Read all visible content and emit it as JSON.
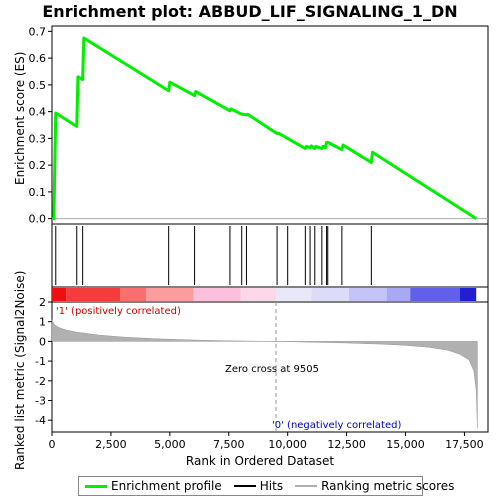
{
  "title": "Enrichment plot: ABBUD_LIF_SIGNALING_1_DN",
  "chart_data": [
    {
      "type": "line",
      "name": "enrichment-profile",
      "ylabel": "Enrichment score (ES)",
      "ylim": [
        -0.02,
        0.72
      ],
      "xlim": [
        0,
        18500
      ],
      "yticks": [
        "0.0",
        "0.1",
        "0.2",
        "0.3",
        "0.4",
        "0.5",
        "0.6",
        "0.7"
      ],
      "ytick_values": [
        0.0,
        0.1,
        0.2,
        0.3,
        0.4,
        0.5,
        0.6,
        0.7
      ],
      "color": "#00ee00",
      "x": [
        0,
        80,
        160,
        1050,
        1100,
        1300,
        1350,
        4950,
        5000,
        6050,
        6100,
        7550,
        7600,
        8050,
        8100,
        8250,
        8300,
        9550,
        9600,
        10750,
        10800,
        10950,
        11000,
        11150,
        11200,
        11450,
        11500,
        11600,
        11650,
        11700,
        12300,
        12350,
        13550,
        13600,
        18000
      ],
      "y": [
        0.0,
        0.0,
        0.395,
        0.345,
        0.53,
        0.52,
        0.675,
        0.478,
        0.51,
        0.46,
        0.475,
        0.403,
        0.41,
        0.39,
        0.39,
        0.388,
        0.39,
        0.318,
        0.32,
        0.262,
        0.27,
        0.265,
        0.272,
        0.262,
        0.27,
        0.262,
        0.27,
        0.265,
        0.285,
        0.285,
        0.258,
        0.275,
        0.21,
        0.248,
        0.0
      ]
    },
    {
      "type": "hits",
      "name": "hits",
      "x": [
        160,
        1050,
        1300,
        4950,
        6050,
        7550,
        8050,
        8250,
        9550,
        10000,
        10750,
        10950,
        11150,
        11450,
        11650,
        11700,
        12300,
        13550
      ]
    },
    {
      "type": "area",
      "name": "ranking-metric",
      "ylabel": "Ranked list metric (Signal2Noise)",
      "xlabel": "Rank in Ordered Dataset",
      "xlim": [
        0,
        18500
      ],
      "ylim": [
        -4.6,
        2.0
      ],
      "yticks": [
        "2",
        "1",
        "0",
        "-1",
        "-2",
        "-3",
        "-4"
      ],
      "ytick_values": [
        2,
        1,
        0,
        -1,
        -2,
        -3,
        -4
      ],
      "xticks": [
        "0",
        "2,500",
        "5,000",
        "7,500",
        "10,000",
        "12,500",
        "15,000",
        "17,500"
      ],
      "xtick_values": [
        0,
        2500,
        5000,
        7500,
        10000,
        12500,
        15000,
        17500
      ],
      "color": "#b0b0b0",
      "x": [
        0,
        100,
        300,
        600,
        1000,
        2000,
        3000,
        4500,
        6000,
        7500,
        9505,
        11000,
        12500,
        14000,
        15000,
        16000,
        16800,
        17300,
        17700,
        17900,
        18000,
        18050
      ],
      "y": [
        1.1,
        0.85,
        0.7,
        0.58,
        0.48,
        0.32,
        0.22,
        0.13,
        0.07,
        0.03,
        0.0,
        -0.04,
        -0.08,
        -0.14,
        -0.2,
        -0.3,
        -0.45,
        -0.65,
        -0.95,
        -1.5,
        -2.5,
        -4.4
      ]
    }
  ],
  "gradient_segments": [
    {
      "x0": 0,
      "x1": 600,
      "color": "#ee1010"
    },
    {
      "x0": 600,
      "x1": 2900,
      "color": "#f53c3c"
    },
    {
      "x0": 2900,
      "x1": 4000,
      "color": "#fa6e6e"
    },
    {
      "x0": 4000,
      "x1": 6000,
      "color": "#fc9c9c"
    },
    {
      "x0": 6000,
      "x1": 8000,
      "color": "#fcc0dc"
    },
    {
      "x0": 8000,
      "x1": 9505,
      "color": "#fcd8e8"
    },
    {
      "x0": 9505,
      "x1": 11000,
      "color": "#e8e8f8"
    },
    {
      "x0": 11000,
      "x1": 12600,
      "color": "#dcdcf8"
    },
    {
      "x0": 12600,
      "x1": 14200,
      "color": "#c4c4f8"
    },
    {
      "x0": 14200,
      "x1": 15200,
      "color": "#a8a8f4"
    },
    {
      "x0": 15200,
      "x1": 17300,
      "color": "#6060ec"
    },
    {
      "x0": 17300,
      "x1": 18000,
      "color": "#2020d0"
    }
  ],
  "annotations": {
    "pos_label": "'1' (positively correlated)",
    "neg_label": "'0' (negatively correlated)",
    "zero_cross": "Zero cross at 9505",
    "zero_cross_x": 9505
  },
  "legend": [
    {
      "label": "Enrichment profile",
      "color": "#00ee00"
    },
    {
      "label": "Hits",
      "color": "#000000"
    },
    {
      "label": "Ranking metric scores",
      "color": "#b0b0b0"
    }
  ]
}
